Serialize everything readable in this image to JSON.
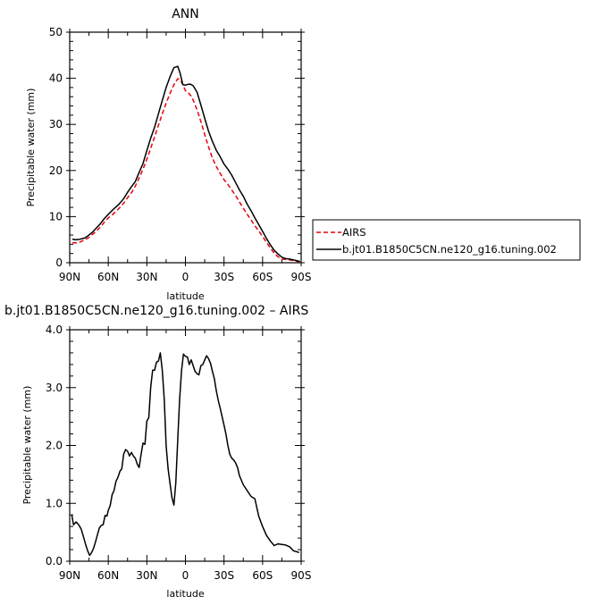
{
  "chart_data": [
    {
      "type": "line",
      "title": "ANN",
      "xlabel": "latitude",
      "ylabel": "Precipitable water (mm)",
      "xlim": [
        90,
        -90
      ],
      "ylim": [
        0,
        50
      ],
      "xticks": [
        90,
        60,
        30,
        0,
        -30,
        -60,
        -90
      ],
      "xtick_labels": [
        "90N",
        "60N",
        "30N",
        "0",
        "30S",
        "60S",
        "90S"
      ],
      "yticks": [
        0,
        10,
        20,
        30,
        40,
        50
      ],
      "ytick_labels": [
        "0",
        "10",
        "20",
        "30",
        "40",
        "50"
      ],
      "grid": false,
      "legend": "outside-right",
      "series": [
        {
          "name": "AIRS",
          "color": "#e8000b",
          "dash": "dashed",
          "x": [
            88,
            85,
            82,
            78,
            75,
            72,
            69,
            66,
            63,
            60,
            56,
            52,
            48,
            45,
            42,
            39,
            36,
            33,
            30,
            27,
            24,
            21,
            18,
            15,
            12,
            9,
            6,
            4,
            2,
            0,
            -2,
            -4,
            -6,
            -9,
            -12,
            -15,
            -18,
            -21,
            -24,
            -27,
            -30,
            -33,
            -36,
            -39,
            -42,
            -45,
            -48,
            -51,
            -54,
            -57,
            -60,
            -63,
            -66,
            -69,
            -72,
            -75,
            -78,
            -81,
            -84,
            -87,
            -89
          ],
          "values": [
            4.3,
            4.3,
            4.5,
            5.0,
            5.5,
            6.2,
            6.9,
            7.8,
            8.8,
            9.7,
            10.6,
            11.7,
            12.9,
            14.1,
            15.2,
            16.6,
            18.4,
            20.3,
            22.4,
            24.8,
            27.3,
            29.8,
            32.3,
            34.6,
            36.7,
            38.6,
            39.9,
            39.7,
            38.6,
            37.3,
            36.9,
            36.3,
            35.3,
            33.2,
            30.6,
            27.8,
            25.1,
            22.7,
            20.9,
            19.4,
            18.0,
            17.0,
            15.8,
            14.6,
            13.2,
            11.8,
            10.5,
            9.3,
            8.0,
            6.9,
            5.7,
            4.5,
            3.2,
            2.1,
            1.3,
            0.8,
            0.7,
            0.6,
            0.5,
            0.3,
            0.2
          ]
        },
        {
          "name": "b.jt01.B1850C5CN.ne120_g16.tuning.002",
          "color": "#000000",
          "dash": "solid",
          "x": [
            88,
            85,
            82,
            78,
            75,
            72,
            69,
            66,
            63,
            60,
            56,
            52,
            48,
            45,
            42,
            39,
            36,
            33,
            30,
            27,
            24,
            21,
            18,
            15,
            12,
            9,
            6,
            4,
            2,
            0,
            -2,
            -4,
            -6,
            -9,
            -12,
            -15,
            -18,
            -21,
            -24,
            -27,
            -30,
            -33,
            -36,
            -39,
            -42,
            -45,
            -48,
            -51,
            -54,
            -57,
            -60,
            -63,
            -66,
            -69,
            -72,
            -75,
            -78,
            -81,
            -84,
            -87,
            -89
          ],
          "values": [
            5.1,
            5.0,
            5.1,
            5.4,
            6.0,
            6.7,
            7.6,
            8.5,
            9.6,
            10.5,
            11.6,
            12.6,
            13.9,
            15.3,
            16.5,
            17.6,
            19.6,
            21.5,
            24.3,
            27.0,
            29.4,
            32.3,
            35.2,
            38.0,
            40.3,
            42.3,
            42.6,
            41.0,
            38.6,
            38.5,
            38.7,
            38.7,
            38.4,
            37.0,
            34.2,
            31.3,
            28.5,
            26.3,
            24.4,
            23.0,
            21.4,
            20.3,
            19.0,
            17.4,
            15.8,
            14.4,
            12.7,
            11.3,
            9.7,
            8.3,
            6.8,
            5.3,
            3.9,
            2.7,
            1.9,
            1.2,
            0.9,
            0.8,
            0.6,
            0.4,
            0.3
          ]
        }
      ]
    },
    {
      "type": "line",
      "title": "b.jt01.B1850C5CN.ne120_g16.tuning.002 – AIRS",
      "xlabel": "latitude",
      "ylabel": "Precipitable water (mm)",
      "xlim": [
        90,
        -90
      ],
      "ylim": [
        0,
        4
      ],
      "xticks": [
        90,
        60,
        30,
        0,
        -30,
        -60,
        -90
      ],
      "xtick_labels": [
        "90N",
        "60N",
        "30N",
        "0",
        "30S",
        "60S",
        "90S"
      ],
      "yticks": [
        0,
        1,
        2,
        3,
        4
      ],
      "ytick_labels": [
        "0.0",
        "1.0",
        "2.0",
        "3.0",
        "4.0"
      ],
      "grid": false,
      "series": [
        {
          "color": "#000000",
          "dash": "solid",
          "x": [
            88.5,
            87,
            85,
            83,
            81,
            79,
            77.5,
            76,
            74.5,
            73,
            71.5,
            70,
            68.5,
            67,
            65.5,
            64,
            62.5,
            61,
            60,
            58.5,
            57,
            55.5,
            54,
            52.5,
            51,
            49.5,
            48,
            46.5,
            45,
            43.5,
            42,
            40.5,
            39,
            37.5,
            36,
            34.5,
            33,
            31.5,
            30,
            28.5,
            27,
            25.5,
            24,
            22.5,
            21,
            19.5,
            18,
            16.5,
            15,
            13.5,
            12,
            10.5,
            9,
            7.5,
            6,
            4.5,
            3,
            1.5,
            0,
            -1.5,
            -3,
            -4.5,
            -6,
            -7.5,
            -9,
            -10.5,
            -12,
            -13.5,
            -15,
            -16.5,
            -18,
            -19.5,
            -21,
            -22.5,
            -24,
            -25.5,
            -27,
            -28.5,
            -30,
            -31.5,
            -33,
            -34.5,
            -36,
            -37.5,
            -39,
            -40.5,
            -42,
            -45,
            -48,
            -51,
            -54,
            -57,
            -60,
            -63,
            -66,
            -69,
            -72,
            -75,
            -78,
            -81,
            -84,
            -87,
            -88.5
          ],
          "values": [
            0.81,
            0.63,
            0.68,
            0.63,
            0.55,
            0.4,
            0.28,
            0.18,
            0.1,
            0.15,
            0.22,
            0.33,
            0.45,
            0.57,
            0.62,
            0.63,
            0.79,
            0.78,
            0.88,
            0.96,
            1.15,
            1.22,
            1.38,
            1.45,
            1.55,
            1.6,
            1.85,
            1.93,
            1.9,
            1.82,
            1.88,
            1.82,
            1.78,
            1.68,
            1.62,
            1.85,
            2.04,
            2.02,
            2.42,
            2.48,
            3.0,
            3.3,
            3.3,
            3.44,
            3.46,
            3.6,
            3.3,
            2.8,
            2.0,
            1.6,
            1.35,
            1.1,
            0.97,
            1.35,
            2.1,
            2.8,
            3.3,
            3.58,
            3.54,
            3.53,
            3.4,
            3.48,
            3.38,
            3.28,
            3.24,
            3.22,
            3.38,
            3.4,
            3.48,
            3.55,
            3.5,
            3.42,
            3.28,
            3.15,
            2.95,
            2.78,
            2.65,
            2.5,
            2.35,
            2.2,
            2.0,
            1.85,
            1.78,
            1.75,
            1.7,
            1.62,
            1.48,
            1.32,
            1.22,
            1.12,
            1.08,
            0.78,
            0.6,
            0.45,
            0.35,
            0.27,
            0.3,
            0.29,
            0.28,
            0.25,
            0.18,
            0.16,
            0.15
          ]
        }
      ]
    }
  ]
}
